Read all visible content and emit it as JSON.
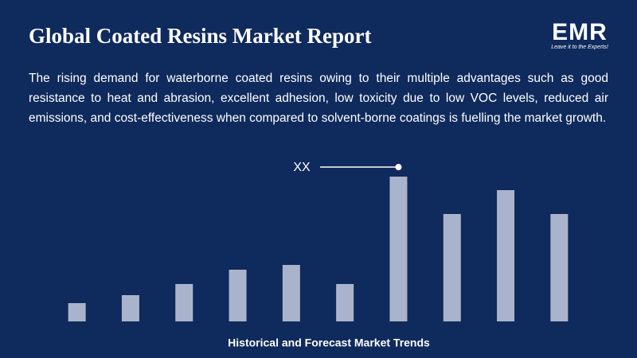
{
  "header": {
    "title": "Global Coated Resins Market Report",
    "logo": "EMR",
    "tagline": "Leave it to the Experts!"
  },
  "description": "The rising demand for waterborne coated resins owing to their multiple advantages such as good resistance to heat and abrasion, excellent adhesion, low toxicity due to low VOC levels, reduced air emissions, and cost-effectiveness when compared to solvent-borne coatings is fuelling the market growth.",
  "chart_data": {
    "type": "bar",
    "annotation": "XX",
    "categories": [
      null,
      null,
      null,
      null,
      null,
      null,
      null,
      null,
      null,
      null
    ],
    "values": [
      23,
      33,
      47,
      65,
      71,
      47,
      182,
      135,
      165,
      135
    ],
    "color": "#a9b4cc",
    "ylim": [
      0,
      200
    ],
    "xlabel": "Historical and Forecast Market Trends"
  }
}
